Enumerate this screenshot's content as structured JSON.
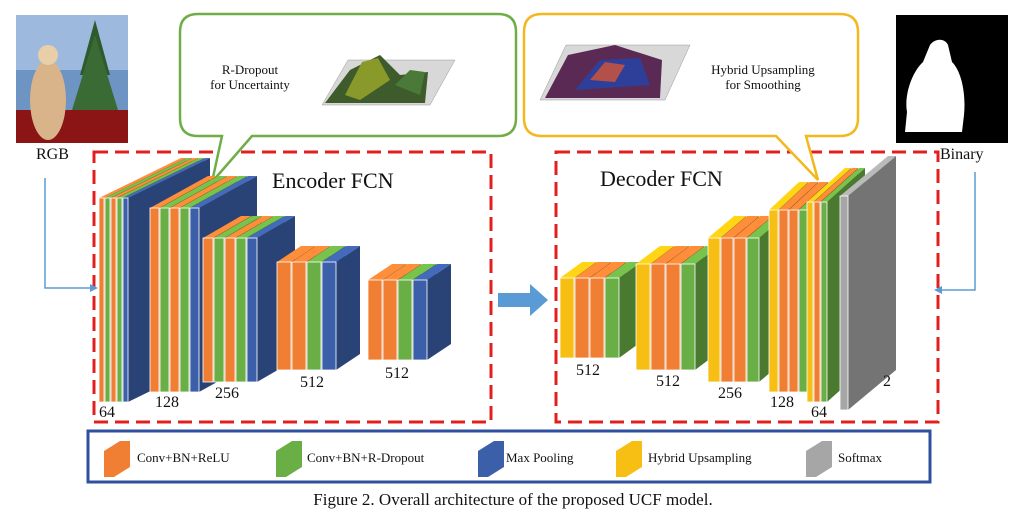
{
  "colors": {
    "conv_relu": "#F07F34",
    "conv_dropout": "#6AAF45",
    "max_pool": "#3C5FA9",
    "upsample": "#F7BE13",
    "softmax": "#A6A6A6",
    "encoder_border": "#E0201F",
    "bubble_green": "#70AD47",
    "bubble_yellow": "#F2B81E",
    "arrow": "#5B9BD5",
    "legend_border": "#2F4F9F"
  },
  "input": {
    "label": "RGB",
    "image": "santa-claus-figurine-photo"
  },
  "output": {
    "label": "Binary",
    "image": "binary-mask-silhouette"
  },
  "encoder": {
    "title": "Encoder FCN",
    "channels": [
      "64",
      "128",
      "256",
      "512",
      "512"
    ]
  },
  "decoder": {
    "title": "Decoder FCN",
    "channels": [
      "512",
      "512",
      "256",
      "128",
      "64",
      "2"
    ]
  },
  "bubbles": {
    "encoder": {
      "line1": "R-Dropout",
      "line2": "for Uncertainty"
    },
    "decoder": {
      "line1": "Hybrid Upsampling",
      "line2": "for  Smoothing"
    }
  },
  "legend": [
    {
      "label": "Conv+BN+ReLU",
      "color": "#F07F34"
    },
    {
      "label": "Conv+BN+R-Dropout",
      "color": "#6AAF45"
    },
    {
      "label": "Max Pooling",
      "color": "#3C5FA9"
    },
    {
      "label": "Hybrid Upsampling",
      "color": "#F7BE13"
    },
    {
      "label": "Softmax",
      "color": "#A6A6A6"
    }
  ],
  "caption": "Figure 2. Overall architecture of the proposed UCF model."
}
